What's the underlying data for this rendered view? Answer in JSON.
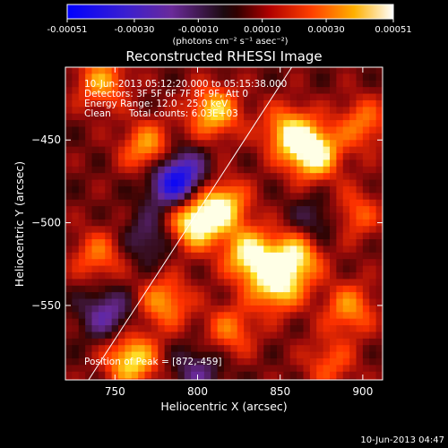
{
  "chart_data": {
    "type": "heatmap",
    "title": "Reconstructed RHESSI Image",
    "xlabel": "Heliocentric X (arcsec)",
    "ylabel": "Heliocentric Y (arcsec)",
    "xlim": [
      720,
      912
    ],
    "ylim": [
      -595,
      -406
    ],
    "x_ticks": [
      750,
      800,
      850,
      900
    ],
    "y_ticks": [
      -450,
      -500,
      -550
    ],
    "colorbar": {
      "label": "(photons cm⁻² s⁻¹ asec⁻²)",
      "range": [
        -0.00051,
        0.00051
      ],
      "ticks": [
        "-0.00051",
        "-0.00030",
        "-0.00010",
        "0.00010",
        "0.00030",
        "0.00051"
      ],
      "tick_values": [
        -0.00051,
        -0.0003,
        -0.0001,
        0.0001,
        0.0003,
        0.00051
      ]
    },
    "info_lines": [
      "10-Jun-2013 05:12:20.000 to 05:15:38.000",
      "Detectors: 3F 5F 6F 7F 8F 9F, Att 0",
      "Energy Range: 12.0 - 25.0 keV",
      "Clean      Total counts: 6.03E+03"
    ],
    "peak": {
      "label": "Position of Peak = [872,-459]",
      "x": 872,
      "y": -459
    },
    "limb_line": [
      [
        734,
        -595
      ],
      [
        857,
        -406
      ]
    ],
    "blobs": [
      {
        "x": 798,
        "y": -500,
        "value": 0.00048
      },
      {
        "x": 815,
        "y": -490,
        "value": 0.0004
      },
      {
        "x": 832,
        "y": -520,
        "value": 0.00045
      },
      {
        "x": 860,
        "y": -520,
        "value": 0.0004
      },
      {
        "x": 848,
        "y": -538,
        "value": 0.00042
      },
      {
        "x": 870,
        "y": -458,
        "value": 0.0005
      },
      {
        "x": 855,
        "y": -445,
        "value": 0.00036
      },
      {
        "x": 810,
        "y": -433,
        "value": 0.00038
      },
      {
        "x": 770,
        "y": -455,
        "value": 0.00032
      },
      {
        "x": 742,
        "y": -415,
        "value": 0.0003
      },
      {
        "x": 760,
        "y": -583,
        "value": 0.00042
      },
      {
        "x": 780,
        "y": -548,
        "value": 0.0003
      },
      {
        "x": 740,
        "y": -520,
        "value": 0.00024
      },
      {
        "x": 892,
        "y": -552,
        "value": 0.00028
      },
      {
        "x": 900,
        "y": -440,
        "value": 0.00025
      },
      {
        "x": 820,
        "y": -565,
        "value": 0.00024
      },
      {
        "x": 880,
        "y": -585,
        "value": 0.0002
      },
      {
        "x": 895,
        "y": -495,
        "value": 0.00022
      },
      {
        "x": 790,
        "y": -470,
        "value": -0.00028
      },
      {
        "x": 785,
        "y": -478,
        "value": -0.0003
      },
      {
        "x": 745,
        "y": -555,
        "value": -0.00026
      },
      {
        "x": 800,
        "y": -590,
        "value": -0.0002
      },
      {
        "x": 872,
        "y": -500,
        "value": -0.00018
      },
      {
        "x": 770,
        "y": -510,
        "value": -0.00018
      }
    ]
  },
  "footer": {
    "timestamp": "10-Jun-2013 04:47"
  },
  "colors": {
    "background": "#000000",
    "foreground": "#ffffff",
    "colormap": [
      "#1a1aff",
      "#5a2fb0",
      "#7d2a8c",
      "#a01818",
      "#ff3000",
      "#ff9a00",
      "#ffe830",
      "#ffffe0"
    ]
  }
}
